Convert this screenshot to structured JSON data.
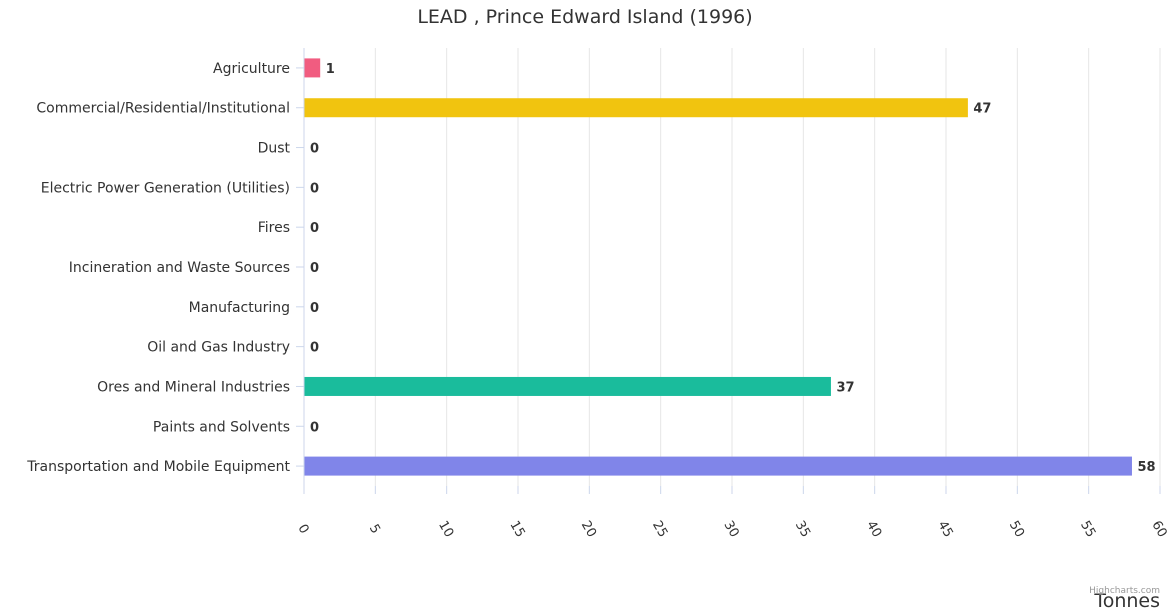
{
  "chart_data": {
    "type": "bar",
    "orientation": "horizontal",
    "title": "LEAD , Prince Edward Island (1996)",
    "xlabel": "Tonnes",
    "categories": [
      "Agriculture",
      "Commercial/Residential/Institutional",
      "Dust",
      "Electric Power Generation (Utilities)",
      "Fires",
      "Incineration and Waste Sources",
      "Manufacturing",
      "Oil and Gas Industry",
      "Ores and Mineral Industries",
      "Paints and Solvents",
      "Transportation and Mobile Equipment"
    ],
    "values": [
      1.1,
      46.5,
      0,
      0,
      0,
      0,
      0,
      0,
      36.9,
      0,
      58
    ],
    "data_labels": [
      "1",
      "47",
      "0",
      "0",
      "0",
      "0",
      "0",
      "0",
      "37",
      "0",
      "58"
    ],
    "colors": [
      "#f15c80",
      "#f1c40f",
      "#e4d354",
      "#2b908f",
      "#f45b5b",
      "#91e8e1",
      "#7cb5ec",
      "#434348",
      "#1abc9c",
      "#90ed7d",
      "#8085e9"
    ],
    "xlim": [
      0,
      60
    ],
    "ticks": [
      "0",
      "5",
      "10",
      "15",
      "20",
      "25",
      "30",
      "35",
      "40",
      "45",
      "50",
      "55",
      "60"
    ],
    "grid": true,
    "legend": false
  },
  "credits": "Highcharts.com"
}
